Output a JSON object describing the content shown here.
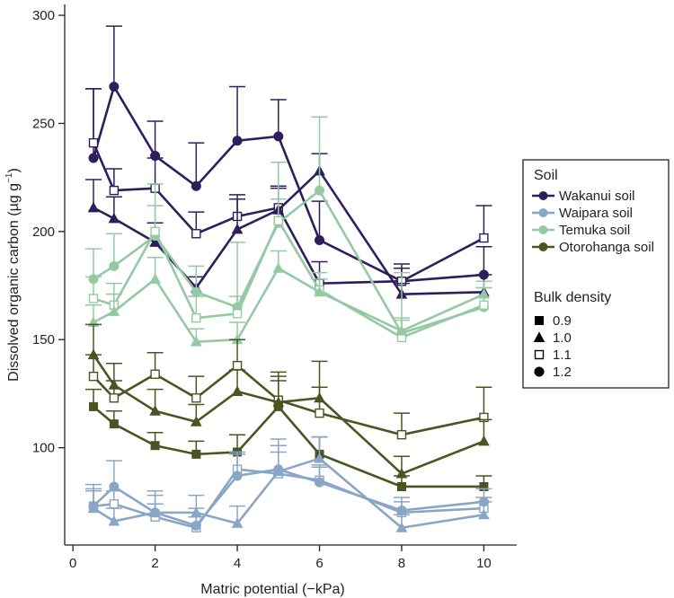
{
  "chart_data": {
    "type": "line",
    "xlabel": "Matric potential (−kPa)",
    "ylabel_main": "Dissolved organic carbon (µg g",
    "ylabel_sup": "−1",
    "ylabel_close": ")",
    "xlim": [
      -0.2,
      10.8
    ],
    "ylim": [
      55,
      305
    ],
    "x_ticks": [
      0,
      2,
      4,
      6,
      8,
      10
    ],
    "x_tick_labels": [
      "0",
      "2",
      "4",
      "6",
      "8",
      "10"
    ],
    "y_ticks": [
      100,
      150,
      200,
      250,
      300
    ],
    "y_tick_labels": [
      "100",
      "150",
      "200",
      "250",
      "300"
    ],
    "x": [
      0.5,
      1,
      2,
      3,
      4,
      5,
      6,
      8,
      10
    ],
    "soils": {
      "Wakanui": {
        "color": "#2e1f5c"
      },
      "Waipara": {
        "color": "#8aa6c6"
      },
      "Temuka": {
        "color": "#95c9a3"
      },
      "Otorohanga": {
        "color": "#4a5522"
      }
    },
    "series": [
      {
        "soil": "Wakanui",
        "density": "1.2",
        "marker": "circle-filled",
        "values": [
          234,
          267,
          235,
          221,
          242,
          244,
          196,
          177,
          180
        ],
        "errors": [
          32,
          28,
          16,
          20,
          25,
          17,
          18,
          8,
          13
        ]
      },
      {
        "soil": "Wakanui",
        "density": "1.1",
        "marker": "square-open",
        "values": [
          241,
          219,
          220,
          199,
          207,
          211,
          176,
          177,
          197
        ],
        "errors": [
          25,
          10,
          14,
          10,
          10,
          10,
          10,
          6,
          15
        ]
      },
      {
        "soil": "Wakanui",
        "density": "1.0",
        "marker": "triangle-filled",
        "values": [
          211,
          206,
          195,
          174,
          201,
          210,
          228,
          171,
          172
        ],
        "errors": [
          13,
          10,
          9,
          5,
          14,
          10,
          8,
          5,
          8
        ]
      },
      {
        "soil": "Temuka",
        "density": "1.2",
        "marker": "circle-filled",
        "values": [
          178,
          184,
          198,
          172,
          165,
          204,
          219,
          153,
          165
        ],
        "errors": [
          14,
          15,
          24,
          12,
          30,
          28,
          34,
          28,
          9
        ]
      },
      {
        "soil": "Temuka",
        "density": "1.1",
        "marker": "square-open",
        "values": [
          169,
          166,
          200,
          160,
          162,
          205,
          173,
          151,
          166
        ],
        "errors": [
          10,
          10,
          12,
          10,
          8,
          10,
          8,
          8,
          8
        ]
      },
      {
        "soil": "Temuka",
        "density": "1.0",
        "marker": "triangle-filled",
        "values": [
          158,
          163,
          178,
          149,
          150,
          183,
          172,
          154,
          171
        ],
        "errors": [
          8,
          8,
          10,
          6,
          8,
          8,
          6,
          6,
          6
        ]
      },
      {
        "soil": "Otorohanga",
        "density": "1.1",
        "marker": "square-open",
        "values": [
          133,
          123,
          134,
          123,
          138,
          122,
          116,
          106,
          114
        ],
        "errors": [
          10,
          8,
          10,
          10,
          12,
          13,
          12,
          10,
          14
        ]
      },
      {
        "soil": "Otorohanga",
        "density": "1.0",
        "marker": "triangle-filled",
        "values": [
          143,
          129,
          117,
          112,
          126,
          121,
          123,
          88,
          103
        ],
        "errors": [
          14,
          10,
          10,
          8,
          10,
          12,
          17,
          8,
          10
        ]
      },
      {
        "soil": "Otorohanga",
        "density": "0.9",
        "marker": "square-filled",
        "values": [
          119,
          111,
          101,
          97,
          98,
          119,
          97,
          82,
          82
        ],
        "errors": [
          8,
          6,
          6,
          6,
          8,
          12,
          8,
          5,
          5
        ]
      },
      {
        "soil": "Waipara",
        "density": "1.1",
        "marker": "square-open",
        "values": [
          73,
          74,
          68,
          63,
          90,
          88,
          85,
          70,
          72
        ],
        "errors": [
          8,
          6,
          6,
          5,
          8,
          10,
          6,
          5,
          5
        ]
      },
      {
        "soil": "Waipara",
        "density": "1.2",
        "marker": "circle-filled",
        "values": [
          73,
          82,
          70,
          64,
          87,
          90,
          84,
          71,
          75
        ],
        "errors": [
          10,
          12,
          10,
          8,
          10,
          14,
          8,
          6,
          6
        ]
      },
      {
        "soil": "Waipara",
        "density": "1.0",
        "marker": "triangle-filled",
        "values": [
          72,
          66,
          70,
          70,
          65,
          89,
          95,
          63,
          69
        ],
        "errors": [
          8,
          6,
          8,
          8,
          8,
          12,
          10,
          6,
          6
        ]
      }
    ],
    "legend": {
      "placement": "right",
      "soil_title": "Soil",
      "soil_entries": [
        {
          "label": "Wakanui soil",
          "soil": "Wakanui"
        },
        {
          "label": "Waipara soil",
          "soil": "Waipara"
        },
        {
          "label": "Temuka soil",
          "soil": "Temuka"
        },
        {
          "label": "Otorohanga soil",
          "soil": "Otorohanga"
        }
      ],
      "density_title": "Bulk density",
      "density_entries": [
        {
          "label": "0.9",
          "marker": "square-filled"
        },
        {
          "label": "1.0",
          "marker": "triangle-filled"
        },
        {
          "label": "1.1",
          "marker": "square-open"
        },
        {
          "label": "1.2",
          "marker": "circle-filled"
        }
      ]
    }
  }
}
